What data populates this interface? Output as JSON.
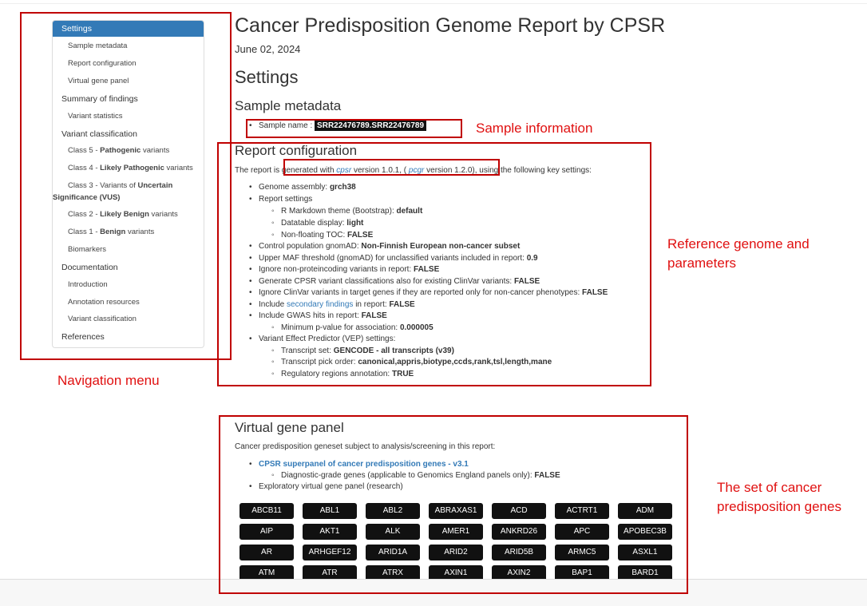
{
  "toc": {
    "items": [
      {
        "label": "Settings"
      },
      {
        "label": "Sample metadata"
      },
      {
        "label": "Report configuration"
      },
      {
        "label": "Virtual gene panel"
      },
      {
        "label": "Summary of findings"
      },
      {
        "label": "Variant statistics"
      },
      {
        "label": "Variant classification"
      },
      {
        "pre": "Class 5 - ",
        "bold": "Pathogenic",
        "post": " variants"
      },
      {
        "pre": "Class 4 - ",
        "bold": "Likely Pathogenic",
        "post": " variants"
      },
      {
        "pre": "Class 3 - Variants of ",
        "bold": "Uncertain",
        "line2": "Significance (VUS)"
      },
      {
        "pre": "Class 2 - ",
        "bold": "Likely Benign",
        "post": " variants"
      },
      {
        "pre": "Class 1 - ",
        "bold": "Benign",
        "post": " variants"
      },
      {
        "label": "Biomarkers"
      },
      {
        "label": "Documentation"
      },
      {
        "label": "Introduction"
      },
      {
        "label": "Annotation resources"
      },
      {
        "label": "Variant classification"
      },
      {
        "label": "References"
      }
    ]
  },
  "report": {
    "title": "Cancer Predisposition Genome Report by CPSR",
    "date": "June 02, 2024",
    "settings_heading": "Settings",
    "sample_metadata_heading": "Sample metadata",
    "sample_name_label": "Sample name  :",
    "sample_name_value": "SRR22476789.SRR22476789",
    "report_config_heading": "Report configuration",
    "config_intro": {
      "a": "The report is generated with ",
      "cpsr": "cpsr",
      "b": " version 1.0.1, ( ",
      "pcgr": "pcgr",
      "c": " version 1.2.0), using the following key settings:"
    },
    "settings": [
      {
        "pre": "Genome assembly: ",
        "bold": "grch38"
      },
      {
        "pre": "Report settings"
      },
      {
        "pre": "R Markdown theme (Bootstrap): ",
        "bold": "default"
      },
      {
        "pre": "Datatable display: ",
        "bold": "light"
      },
      {
        "pre": "Non-floating TOC: ",
        "bold": "FALSE"
      },
      {
        "pre": "Control population gnomAD: ",
        "bold": "Non-Finnish European non-cancer subset"
      },
      {
        "pre": "Upper MAF threshold (gnomAD) for unclassified variants included in report: ",
        "bold": "0.9"
      },
      {
        "pre": "Ignore non-proteincoding variants in report: ",
        "bold": "FALSE"
      },
      {
        "pre": "Generate CPSR variant classifications also for existing ClinVar variants: ",
        "bold": "FALSE"
      },
      {
        "pre": "Ignore ClinVar variants in target genes if they are reported only for non-cancer phenotypes: ",
        "bold": "FALSE"
      },
      {
        "pre": "Include ",
        "link": "secondary findings",
        "mid": " in report: ",
        "bold": "FALSE"
      },
      {
        "pre": "Include GWAS hits in report: ",
        "bold": "FALSE"
      },
      {
        "pre": "Minimum p-value for association: ",
        "bold": "0.000005"
      },
      {
        "pre": "Variant Effect Predictor (VEP) settings:"
      },
      {
        "pre": "Transcript set: ",
        "bold": "GENCODE - all transcripts (v39)"
      },
      {
        "pre": "Transcript pick order: ",
        "bold": "canonical,appris,biotype,ccds,rank,tsl,length,mane"
      },
      {
        "pre": "Regulatory regions annotation: ",
        "bold": "TRUE"
      }
    ],
    "vgp_heading": "Virtual gene panel",
    "vgp_intro": "Cancer predisposition geneset subject to analysis/screening in this report:",
    "vgp_panel_link": "CPSR superpanel of cancer predisposition genes - v3.1",
    "vgp_diag_pre": "Diagnostic-grade genes (applicable to Genomics England panels only): ",
    "vgp_diag_bold": "FALSE",
    "vgp_exploratory": "Exploratory virtual gene panel (research)",
    "genes": [
      "ABCB11",
      "ABL1",
      "ABL2",
      "ABRAXAS1",
      "ACD",
      "ACTRT1",
      "ADM",
      "AIP",
      "AKT1",
      "ALK",
      "AMER1",
      "ANKRD26",
      "APC",
      "APOBEC3B",
      "AR",
      "ARHGEF12",
      "ARID1A",
      "ARID2",
      "ARID5B",
      "ARMC5",
      "ASXL1",
      "ATM",
      "ATR",
      "ATRX",
      "AXIN1",
      "AXIN2",
      "BAP1",
      "BARD1"
    ]
  },
  "annotations": {
    "sample_information": "Sample information",
    "reference_genome": "Reference genome and",
    "reference_genome_2": "parameters",
    "navigation_menu": "Navigation menu",
    "gene_set": "The set of cancer",
    "gene_set_2": "predisposition genes",
    "color": "#c00000"
  }
}
